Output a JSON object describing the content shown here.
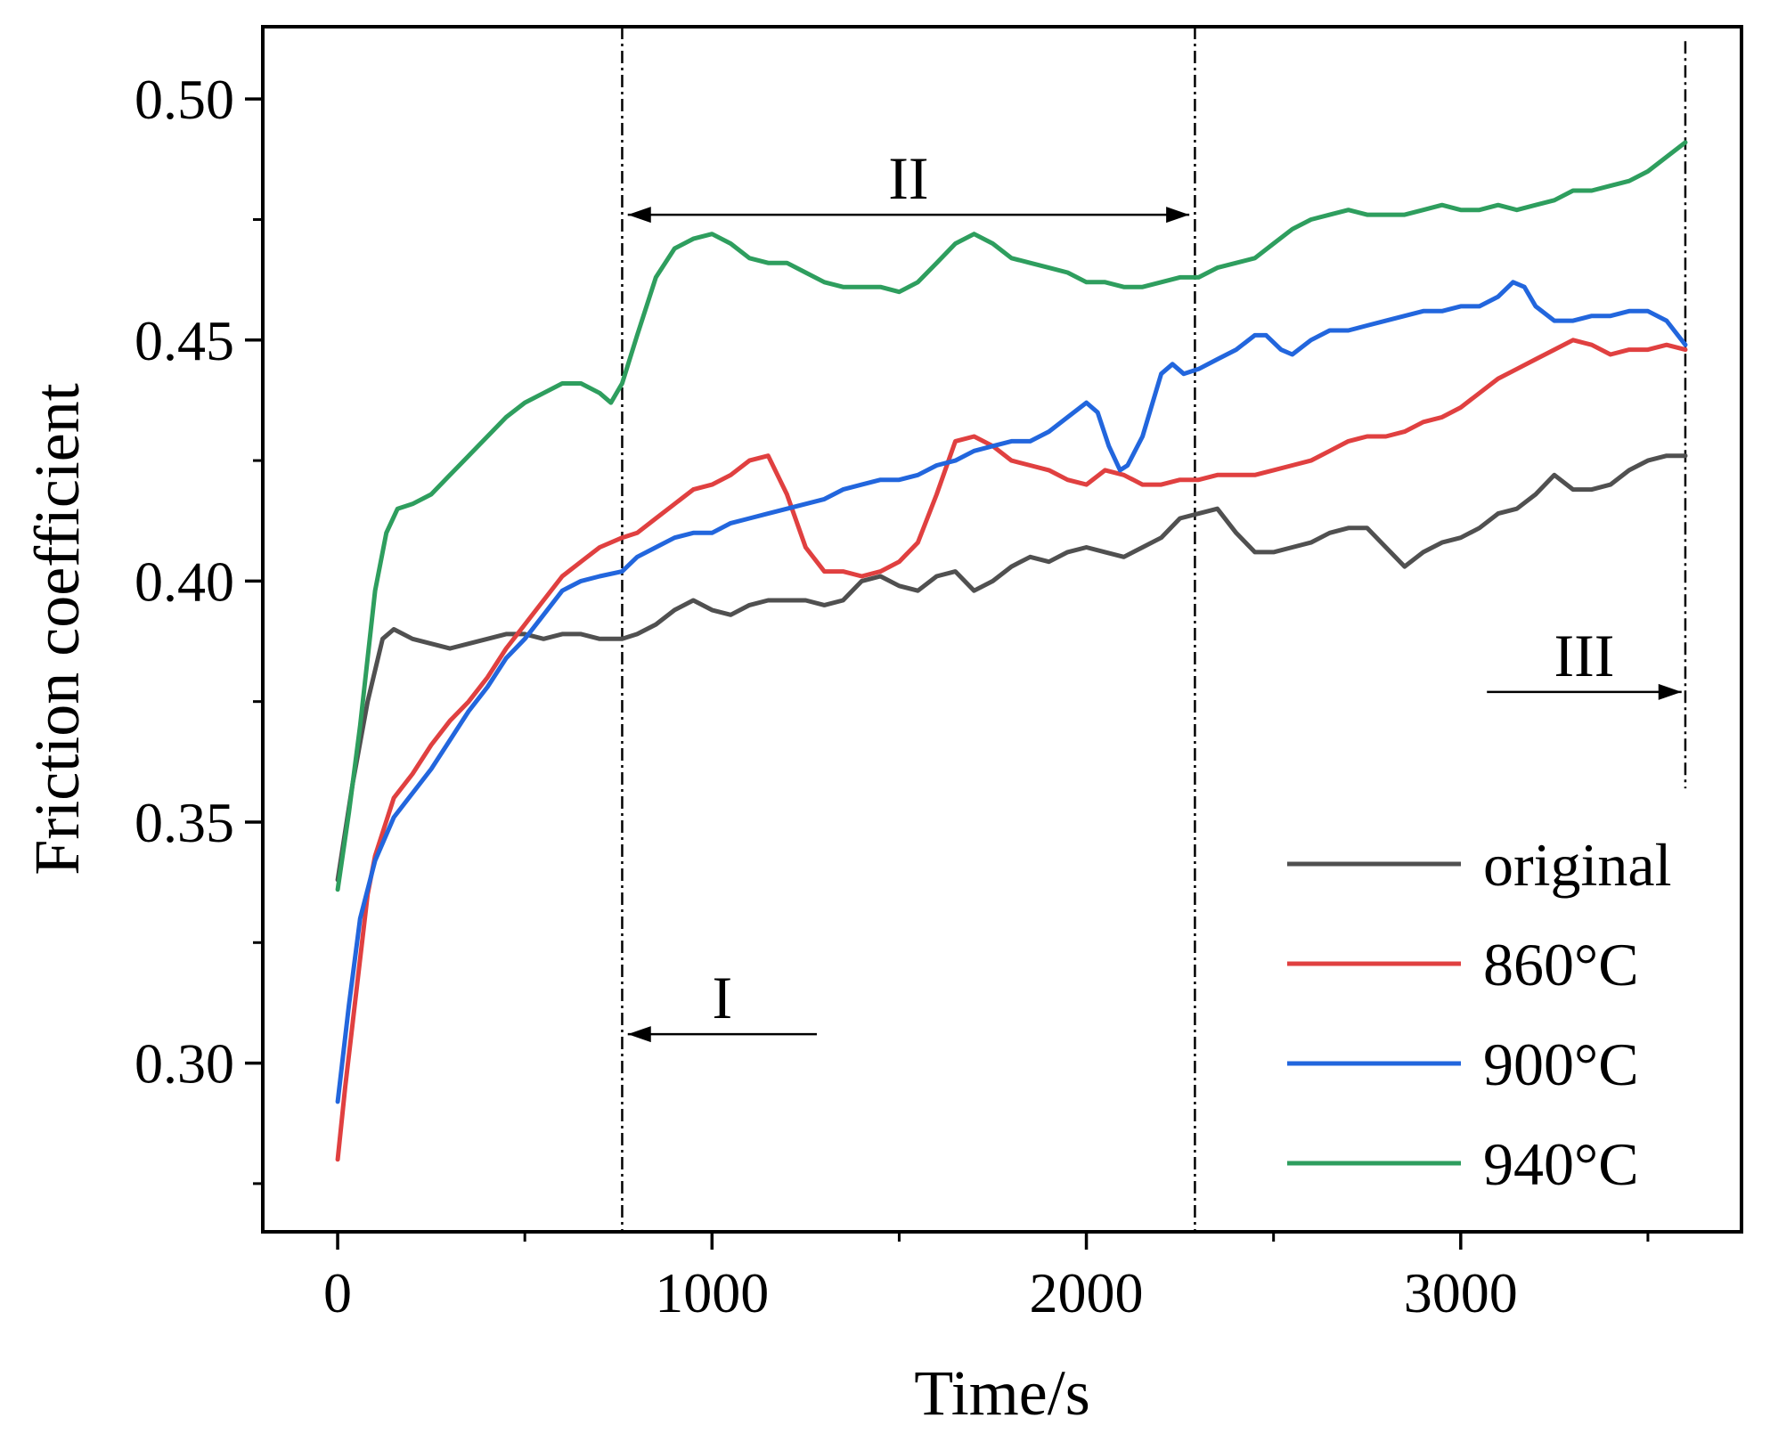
{
  "chart_data": {
    "type": "line",
    "xlabel": "Time/s",
    "ylabel": "Friction coefficient",
    "xlim": [
      -200,
      3750
    ],
    "ylim": [
      0.265,
      0.515
    ],
    "xticks": [
      0,
      1000,
      2000,
      3000
    ],
    "xtick_labels": [
      "0",
      "1000",
      "2000",
      "3000"
    ],
    "xminor": [
      500,
      1500,
      2500,
      3500
    ],
    "yticks": [
      0.3,
      0.35,
      0.4,
      0.45,
      0.5
    ],
    "ytick_labels": [
      "0.30",
      "0.35",
      "0.40",
      "0.45",
      "0.50"
    ],
    "yminor": [
      0.275,
      0.325,
      0.375,
      0.425,
      0.475
    ],
    "grid": false,
    "legend_position": "bottom-right",
    "vlines": [
      760,
      2290,
      3600
    ],
    "regions": [
      {
        "label": "I",
        "arrow_from": 1280,
        "arrow_to": 775,
        "arrow_y": 0.306
      },
      {
        "label": "II",
        "arrow_from": 775,
        "arrow_to": 2275,
        "arrow_y": 0.476
      },
      {
        "label": "III",
        "arrow_from": 3070,
        "arrow_to": 3590,
        "arrow_y": 0.377
      }
    ],
    "series": [
      {
        "name": "original",
        "color": "#505050",
        "x": [
          0,
          40,
          80,
          120,
          150,
          200,
          250,
          300,
          350,
          400,
          450,
          500,
          550,
          600,
          650,
          700,
          760,
          800,
          850,
          900,
          950,
          1000,
          1050,
          1100,
          1150,
          1200,
          1250,
          1300,
          1350,
          1400,
          1450,
          1500,
          1550,
          1600,
          1650,
          1700,
          1750,
          1800,
          1850,
          1900,
          1950,
          2000,
          2050,
          2100,
          2150,
          2200,
          2250,
          2300,
          2350,
          2400,
          2450,
          2500,
          2550,
          2600,
          2650,
          2700,
          2750,
          2800,
          2850,
          2900,
          2950,
          3000,
          3050,
          3100,
          3150,
          3200,
          3250,
          3300,
          3350,
          3400,
          3450,
          3500,
          3550,
          3600
        ],
        "y": [
          0.338,
          0.358,
          0.375,
          0.388,
          0.39,
          0.388,
          0.387,
          0.386,
          0.387,
          0.388,
          0.389,
          0.389,
          0.388,
          0.389,
          0.389,
          0.388,
          0.388,
          0.389,
          0.391,
          0.394,
          0.396,
          0.394,
          0.393,
          0.395,
          0.396,
          0.396,
          0.396,
          0.395,
          0.396,
          0.4,
          0.401,
          0.399,
          0.398,
          0.401,
          0.402,
          0.398,
          0.4,
          0.403,
          0.405,
          0.404,
          0.406,
          0.407,
          0.406,
          0.405,
          0.407,
          0.409,
          0.413,
          0.414,
          0.415,
          0.41,
          0.406,
          0.406,
          0.407,
          0.408,
          0.41,
          0.411,
          0.411,
          0.407,
          0.403,
          0.406,
          0.408,
          0.409,
          0.411,
          0.414,
          0.415,
          0.418,
          0.422,
          0.419,
          0.419,
          0.42,
          0.423,
          0.425,
          0.426,
          0.426
        ]
      },
      {
        "name": "860°C",
        "color": "#e04040",
        "x": [
          0,
          20,
          50,
          80,
          100,
          150,
          200,
          250,
          300,
          350,
          400,
          450,
          500,
          550,
          600,
          650,
          700,
          760,
          800,
          850,
          900,
          950,
          1000,
          1050,
          1100,
          1150,
          1200,
          1250,
          1300,
          1350,
          1400,
          1450,
          1500,
          1550,
          1600,
          1650,
          1700,
          1750,
          1800,
          1850,
          1900,
          1950,
          2000,
          2050,
          2100,
          2150,
          2200,
          2250,
          2300,
          2350,
          2400,
          2450,
          2500,
          2550,
          2600,
          2650,
          2700,
          2750,
          2800,
          2850,
          2900,
          2950,
          3000,
          3050,
          3100,
          3150,
          3200,
          3250,
          3300,
          3350,
          3400,
          3450,
          3500,
          3550,
          3600
        ],
        "y": [
          0.28,
          0.295,
          0.315,
          0.335,
          0.343,
          0.355,
          0.36,
          0.366,
          0.371,
          0.375,
          0.38,
          0.386,
          0.391,
          0.396,
          0.401,
          0.404,
          0.407,
          0.409,
          0.41,
          0.413,
          0.416,
          0.419,
          0.42,
          0.422,
          0.425,
          0.426,
          0.418,
          0.407,
          0.402,
          0.402,
          0.401,
          0.402,
          0.404,
          0.408,
          0.418,
          0.429,
          0.43,
          0.428,
          0.425,
          0.424,
          0.423,
          0.421,
          0.42,
          0.423,
          0.422,
          0.42,
          0.42,
          0.421,
          0.421,
          0.422,
          0.422,
          0.422,
          0.423,
          0.424,
          0.425,
          0.427,
          0.429,
          0.43,
          0.43,
          0.431,
          0.433,
          0.434,
          0.436,
          0.439,
          0.442,
          0.444,
          0.446,
          0.448,
          0.45,
          0.449,
          0.447,
          0.448,
          0.448,
          0.449,
          0.448
        ]
      },
      {
        "name": "900°C",
        "color": "#2266dd",
        "x": [
          0,
          30,
          60,
          100,
          150,
          200,
          250,
          300,
          350,
          400,
          450,
          500,
          550,
          600,
          650,
          700,
          760,
          800,
          850,
          900,
          950,
          1000,
          1050,
          1100,
          1150,
          1200,
          1250,
          1300,
          1350,
          1400,
          1450,
          1500,
          1550,
          1600,
          1650,
          1700,
          1750,
          1800,
          1850,
          1900,
          1950,
          2000,
          2030,
          2060,
          2090,
          2110,
          2150,
          2200,
          2230,
          2260,
          2300,
          2350,
          2400,
          2450,
          2480,
          2520,
          2550,
          2600,
          2650,
          2700,
          2750,
          2800,
          2850,
          2900,
          2950,
          3000,
          3050,
          3100,
          3140,
          3170,
          3200,
          3250,
          3300,
          3350,
          3400,
          3450,
          3500,
          3550,
          3600
        ],
        "y": [
          0.292,
          0.312,
          0.33,
          0.342,
          0.351,
          0.356,
          0.361,
          0.367,
          0.373,
          0.378,
          0.384,
          0.388,
          0.393,
          0.398,
          0.4,
          0.401,
          0.402,
          0.405,
          0.407,
          0.409,
          0.41,
          0.41,
          0.412,
          0.413,
          0.414,
          0.415,
          0.416,
          0.417,
          0.419,
          0.42,
          0.421,
          0.421,
          0.422,
          0.424,
          0.425,
          0.427,
          0.428,
          0.429,
          0.429,
          0.431,
          0.434,
          0.437,
          0.435,
          0.428,
          0.423,
          0.424,
          0.43,
          0.443,
          0.445,
          0.443,
          0.444,
          0.446,
          0.448,
          0.451,
          0.451,
          0.448,
          0.447,
          0.45,
          0.452,
          0.452,
          0.453,
          0.454,
          0.455,
          0.456,
          0.456,
          0.457,
          0.457,
          0.459,
          0.462,
          0.461,
          0.457,
          0.454,
          0.454,
          0.455,
          0.455,
          0.456,
          0.456,
          0.454,
          0.449
        ]
      },
      {
        "name": "940°C",
        "color": "#2e9e5e",
        "x": [
          0,
          30,
          60,
          100,
          130,
          160,
          200,
          250,
          300,
          350,
          400,
          450,
          500,
          550,
          600,
          650,
          700,
          730,
          760,
          800,
          850,
          900,
          950,
          1000,
          1050,
          1100,
          1150,
          1200,
          1250,
          1300,
          1350,
          1400,
          1450,
          1500,
          1550,
          1600,
          1650,
          1700,
          1750,
          1800,
          1850,
          1900,
          1950,
          2000,
          2050,
          2100,
          2150,
          2200,
          2250,
          2300,
          2350,
          2400,
          2450,
          2500,
          2550,
          2600,
          2650,
          2700,
          2750,
          2800,
          2850,
          2900,
          2950,
          3000,
          3050,
          3100,
          3150,
          3200,
          3250,
          3300,
          3350,
          3400,
          3450,
          3500,
          3550,
          3600
        ],
        "y": [
          0.336,
          0.352,
          0.37,
          0.398,
          0.41,
          0.415,
          0.416,
          0.418,
          0.422,
          0.426,
          0.43,
          0.434,
          0.437,
          0.439,
          0.441,
          0.441,
          0.439,
          0.437,
          0.441,
          0.451,
          0.463,
          0.469,
          0.471,
          0.472,
          0.47,
          0.467,
          0.466,
          0.466,
          0.464,
          0.462,
          0.461,
          0.461,
          0.461,
          0.46,
          0.462,
          0.466,
          0.47,
          0.472,
          0.47,
          0.467,
          0.466,
          0.465,
          0.464,
          0.462,
          0.462,
          0.461,
          0.461,
          0.462,
          0.463,
          0.463,
          0.465,
          0.466,
          0.467,
          0.47,
          0.473,
          0.475,
          0.476,
          0.477,
          0.476,
          0.476,
          0.476,
          0.477,
          0.478,
          0.477,
          0.477,
          0.478,
          0.477,
          0.478,
          0.479,
          0.481,
          0.481,
          0.482,
          0.483,
          0.485,
          0.488,
          0.491
        ]
      }
    ]
  }
}
